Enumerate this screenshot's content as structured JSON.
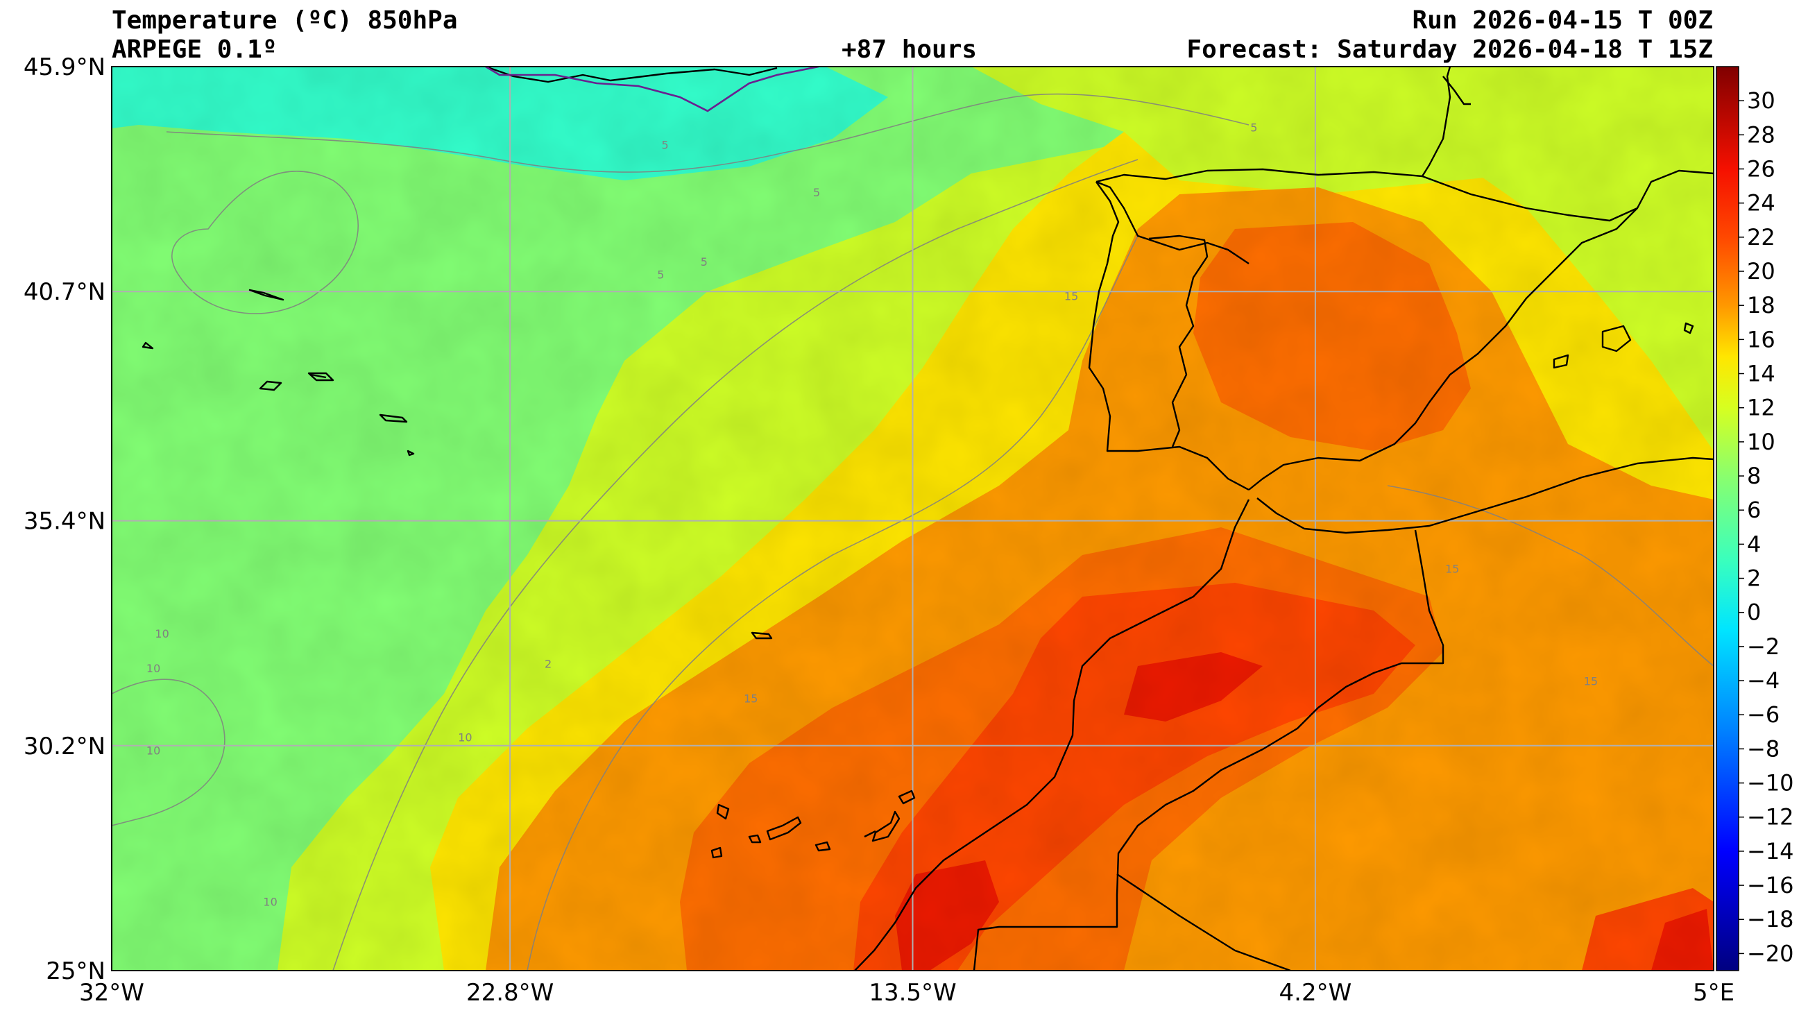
{
  "header": {
    "title_left_1": "Temperature (ºC) 850hPa",
    "title_left_2": "ARPEGE 0.1º",
    "title_center": "+87 hours",
    "title_right_1": "Run 2026-04-15 T 00Z",
    "title_right_2": "Forecast: Saturday 2026-04-18 T 15Z"
  },
  "map": {
    "lon_range": [
      -32,
      5
    ],
    "lat_range": [
      25,
      45.9
    ],
    "lon_ticks": [
      {
        "value": -32,
        "label": "32°W"
      },
      {
        "value": -22.8,
        "label": "22.8°W"
      },
      {
        "value": -13.5,
        "label": "13.5°W"
      },
      {
        "value": -4.2,
        "label": "4.2°W"
      },
      {
        "value": 5,
        "label": "5°E"
      }
    ],
    "lat_ticks": [
      {
        "value": 45.9,
        "label": "45.9°N"
      },
      {
        "value": 40.7,
        "label": "40.7°N"
      },
      {
        "value": 35.4,
        "label": "35.4°N"
      },
      {
        "value": 30.2,
        "label": "30.2°N"
      },
      {
        "value": 25,
        "label": "25°N"
      }
    ],
    "contour_labels": [
      {
        "text": "5",
        "lon": -19.3,
        "lat": 44.0
      },
      {
        "text": "5",
        "lon": -15.8,
        "lat": 42.9
      },
      {
        "text": "5",
        "lon": -19.4,
        "lat": 41.0
      },
      {
        "text": "5",
        "lon": -18.4,
        "lat": 41.3
      },
      {
        "text": "5",
        "lon": -5.7,
        "lat": 44.4
      },
      {
        "text": "10",
        "lon": -31.0,
        "lat": 32.7
      },
      {
        "text": "10",
        "lon": -31.2,
        "lat": 31.9
      },
      {
        "text": "10",
        "lon": -31.2,
        "lat": 30.0
      },
      {
        "text": "10",
        "lon": -24.0,
        "lat": 30.3
      },
      {
        "text": "10",
        "lon": -28.5,
        "lat": 26.5
      },
      {
        "text": "15",
        "lon": -17.4,
        "lat": 31.2
      },
      {
        "text": "15",
        "lon": -1.2,
        "lat": 34.2
      },
      {
        "text": "15",
        "lon": 2.0,
        "lat": 31.6
      },
      {
        "text": "15",
        "lon": -10.0,
        "lat": 40.5
      },
      {
        "text": "2",
        "lon": -22.0,
        "lat": 32.0
      }
    ]
  },
  "colorbar": {
    "min": -21,
    "max": 32,
    "ticks": [
      30,
      28,
      26,
      24,
      22,
      20,
      18,
      16,
      14,
      12,
      10,
      8,
      6,
      4,
      2,
      0,
      -2,
      -4,
      -6,
      -8,
      -10,
      -12,
      -14,
      -16,
      -18,
      -20
    ],
    "tick_labels": [
      "30",
      "28",
      "26",
      "24",
      "22",
      "20",
      "18",
      "16",
      "14",
      "12",
      "10",
      "8",
      "6",
      "4",
      "2",
      "0",
      "−2",
      "−4",
      "−6",
      "−8",
      "−10",
      "−12",
      "−14",
      "−16",
      "−18",
      "−20"
    ],
    "stops": [
      {
        "value": -21,
        "color": "#000080"
      },
      {
        "value": -14,
        "color": "#0000ff"
      },
      {
        "value": -7,
        "color": "#0080ff"
      },
      {
        "value": -1,
        "color": "#00e5ff"
      },
      {
        "value": 3,
        "color": "#39ffbe"
      },
      {
        "value": 8,
        "color": "#8aff6d"
      },
      {
        "value": 12,
        "color": "#d7ff20"
      },
      {
        "value": 15,
        "color": "#ffe600"
      },
      {
        "value": 18,
        "color": "#ff9800"
      },
      {
        "value": 22,
        "color": "#ff4800"
      },
      {
        "value": 26,
        "color": "#f51000"
      },
      {
        "value": 32,
        "color": "#800000"
      }
    ]
  },
  "colors": {
    "ocean_cold": "#33ffcc",
    "ocean_green": "#82ff74",
    "ocean_lime": "#cfff26",
    "yellow": "#ffe600",
    "orange": "#ff9a00",
    "dark_orange": "#ff6e00",
    "red_orange": "#ff4600",
    "red": "#ee1a00",
    "coast": "#000000",
    "grid": "#b0b0b0"
  }
}
